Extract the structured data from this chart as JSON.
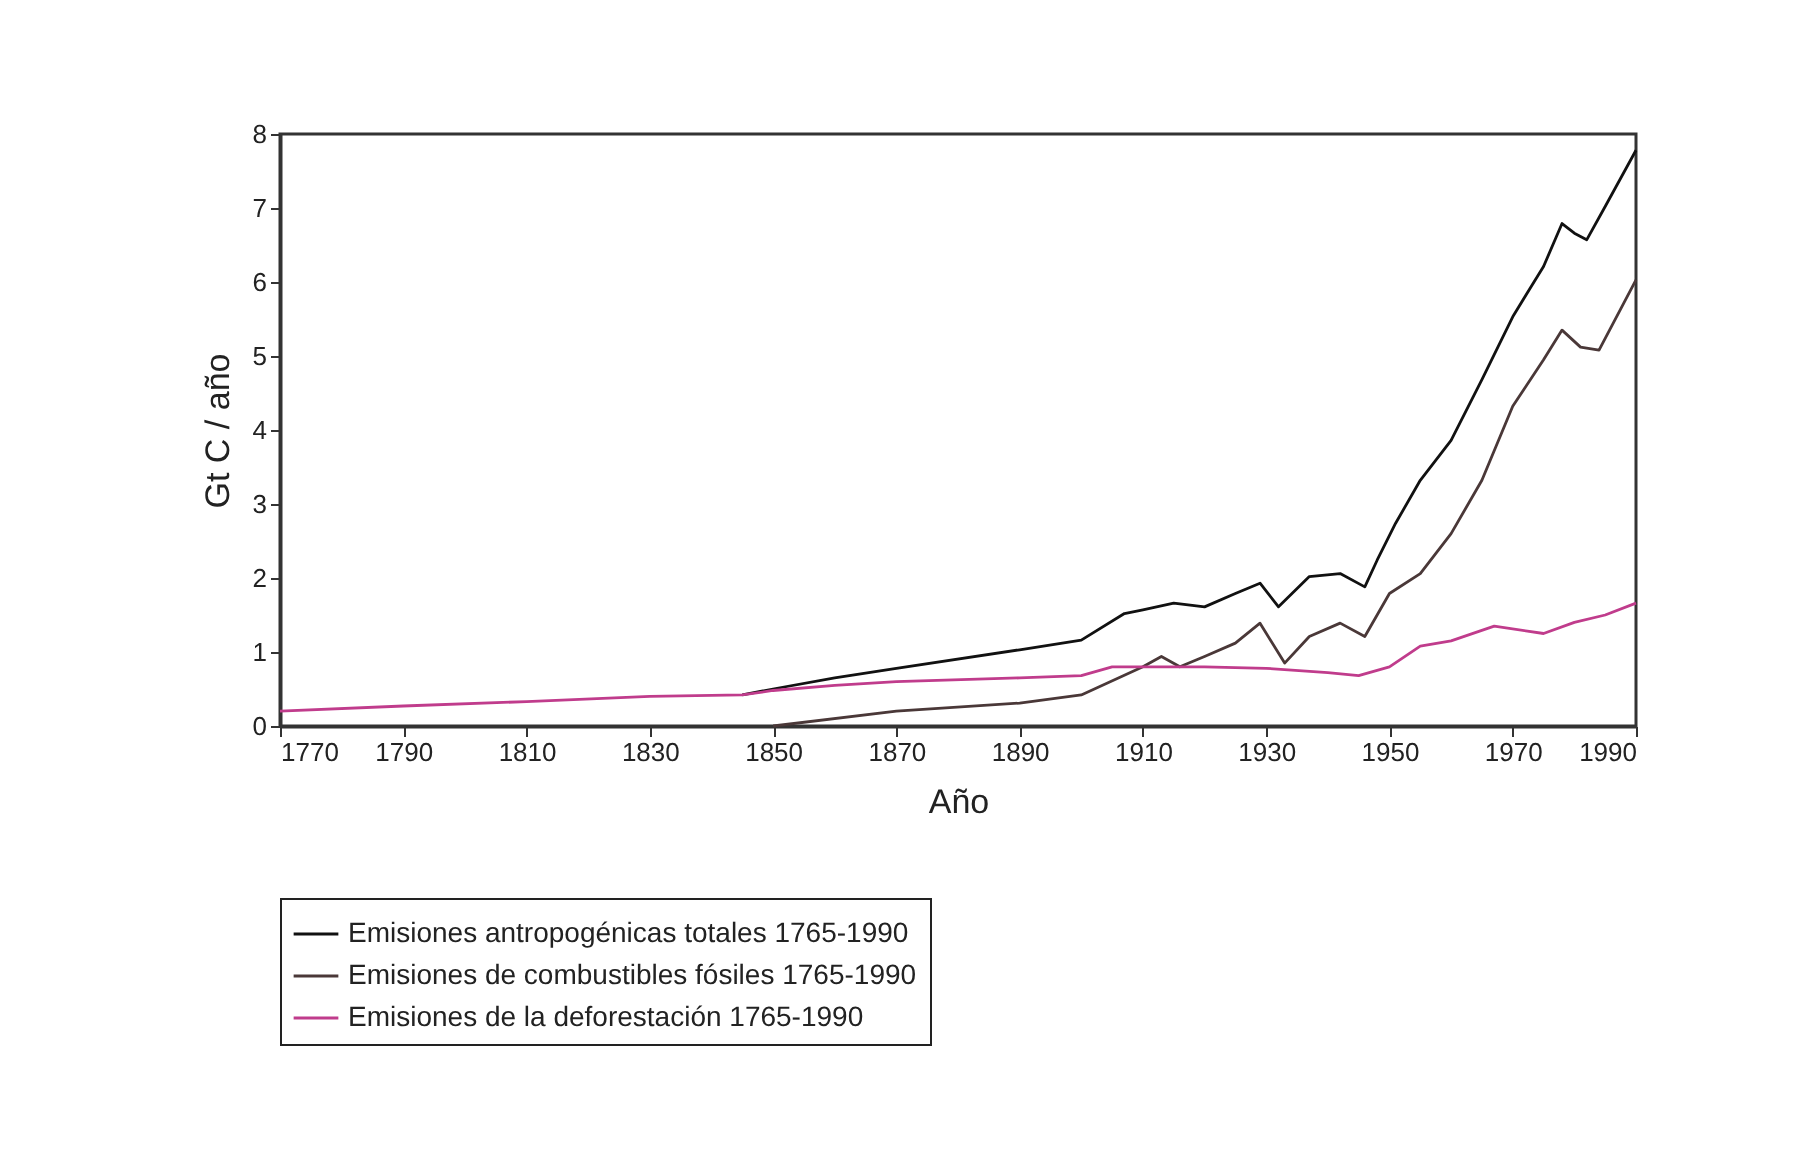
{
  "chart_data": {
    "type": "line",
    "xlabel": "Año",
    "ylabel": "Gt C / año",
    "xlim": [
      1770,
      1990
    ],
    "xticks": [
      1770,
      1790,
      1810,
      1830,
      1850,
      1870,
      1890,
      1910,
      1930,
      1950,
      1970,
      1990
    ],
    "ylim": [
      0,
      8
    ],
    "yticks": [
      0,
      1,
      2,
      3,
      4,
      5,
      6,
      7,
      8
    ],
    "grid": false,
    "legend": "bottom",
    "series": [
      {
        "name": "Emisiones antropogénicas totales 1765-1990",
        "color": "#111111",
        "x": [
          1845,
          1850,
          1860,
          1870,
          1890,
          1900,
          1907,
          1910,
          1915,
          1920,
          1925,
          1929,
          1932,
          1937,
          1942,
          1946,
          1948,
          1951,
          1955,
          1960,
          1965,
          1970,
          1973,
          1975,
          1978,
          1980,
          1982,
          1985,
          1990
        ],
        "values": [
          0.42,
          0.5,
          0.65,
          0.78,
          1.03,
          1.16,
          1.52,
          1.57,
          1.66,
          1.61,
          1.79,
          1.93,
          1.61,
          2.02,
          2.06,
          1.88,
          2.24,
          2.74,
          3.32,
          3.86,
          4.68,
          5.53,
          5.94,
          6.21,
          6.79,
          6.66,
          6.57,
          7.02,
          7.78
        ]
      },
      {
        "name": "Emisiones de combustibles fósiles 1765-1990",
        "color": "#4a3838",
        "x": [
          1850,
          1870,
          1890,
          1900,
          1910,
          1913,
          1916,
          1920,
          1925,
          1929,
          1933,
          1937,
          1942,
          1946,
          1950,
          1955,
          1960,
          1965,
          1970,
          1975,
          1978,
          1981,
          1984,
          1990
        ],
        "values": [
          0.0,
          0.2,
          0.31,
          0.42,
          0.8,
          0.94,
          0.8,
          0.94,
          1.12,
          1.39,
          0.85,
          1.21,
          1.39,
          1.21,
          1.79,
          2.06,
          2.6,
          3.32,
          4.32,
          4.95,
          5.35,
          5.12,
          5.08,
          6.03
        ]
      },
      {
        "name": "Emisiones de la deforestación 1765-1990",
        "color": "#c03c8c",
        "x": [
          1770,
          1790,
          1810,
          1830,
          1845,
          1850,
          1860,
          1870,
          1890,
          1900,
          1905,
          1910,
          1920,
          1930,
          1940,
          1945,
          1950,
          1955,
          1960,
          1967,
          1975,
          1980,
          1985,
          1990
        ],
        "values": [
          0.2,
          0.27,
          0.33,
          0.4,
          0.42,
          0.48,
          0.55,
          0.6,
          0.65,
          0.68,
          0.8,
          0.8,
          0.8,
          0.78,
          0.72,
          0.68,
          0.8,
          1.08,
          1.15,
          1.35,
          1.25,
          1.4,
          1.5,
          1.66
        ]
      }
    ]
  }
}
